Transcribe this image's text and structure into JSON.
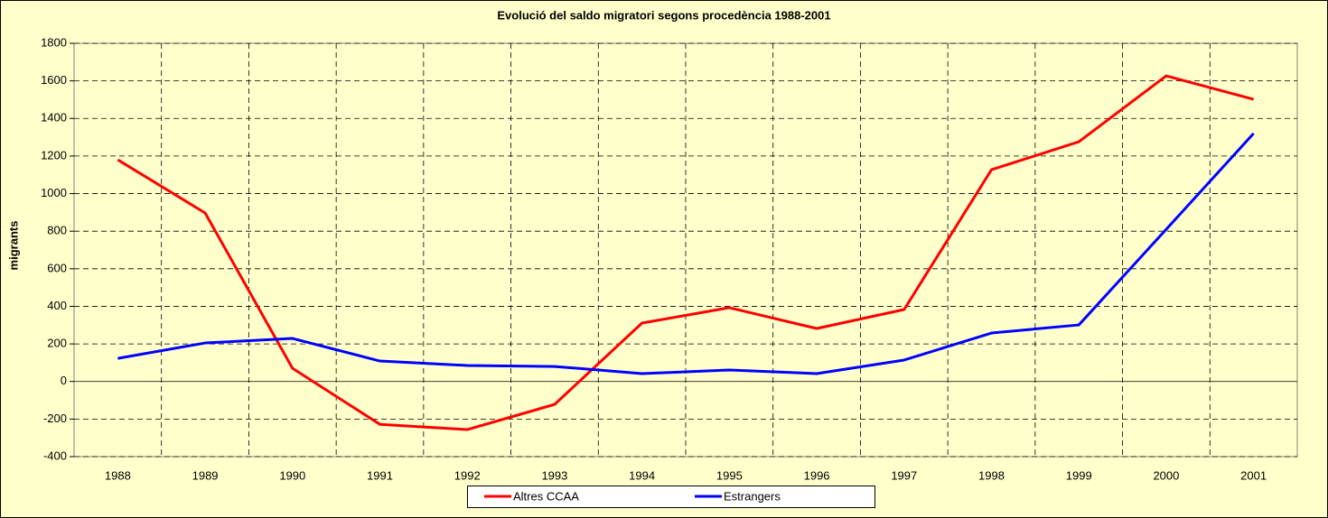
{
  "chart_data": {
    "type": "line",
    "title": "Evolució del saldo migratori segons procedència 1988-2001",
    "y_label": "migrants",
    "categories": [
      "1988",
      "1989",
      "1990",
      "1991",
      "1992",
      "1993",
      "1994",
      "1995",
      "1996",
      "1997",
      "1998",
      "1999",
      "2000",
      "2001"
    ],
    "series": [
      {
        "name": "Altres CCAA",
        "color": "#ff0000",
        "values": [
          1180,
          897,
          70,
          -228,
          -256,
          -122,
          311,
          393,
          282,
          383,
          1127,
          1276,
          1627,
          1502
        ]
      },
      {
        "name": "Estrangers",
        "color": "#0000ff",
        "values": [
          123,
          205,
          229,
          109,
          85,
          80,
          42,
          61,
          42,
          114,
          258,
          301,
          810,
          1320
        ]
      }
    ],
    "ylim": [
      -400,
      1800
    ],
    "yticks": [
      -400,
      -200,
      0,
      200,
      400,
      600,
      800,
      1000,
      1200,
      1400,
      1600,
      1800
    ],
    "grid": true,
    "legend": "bottom"
  }
}
